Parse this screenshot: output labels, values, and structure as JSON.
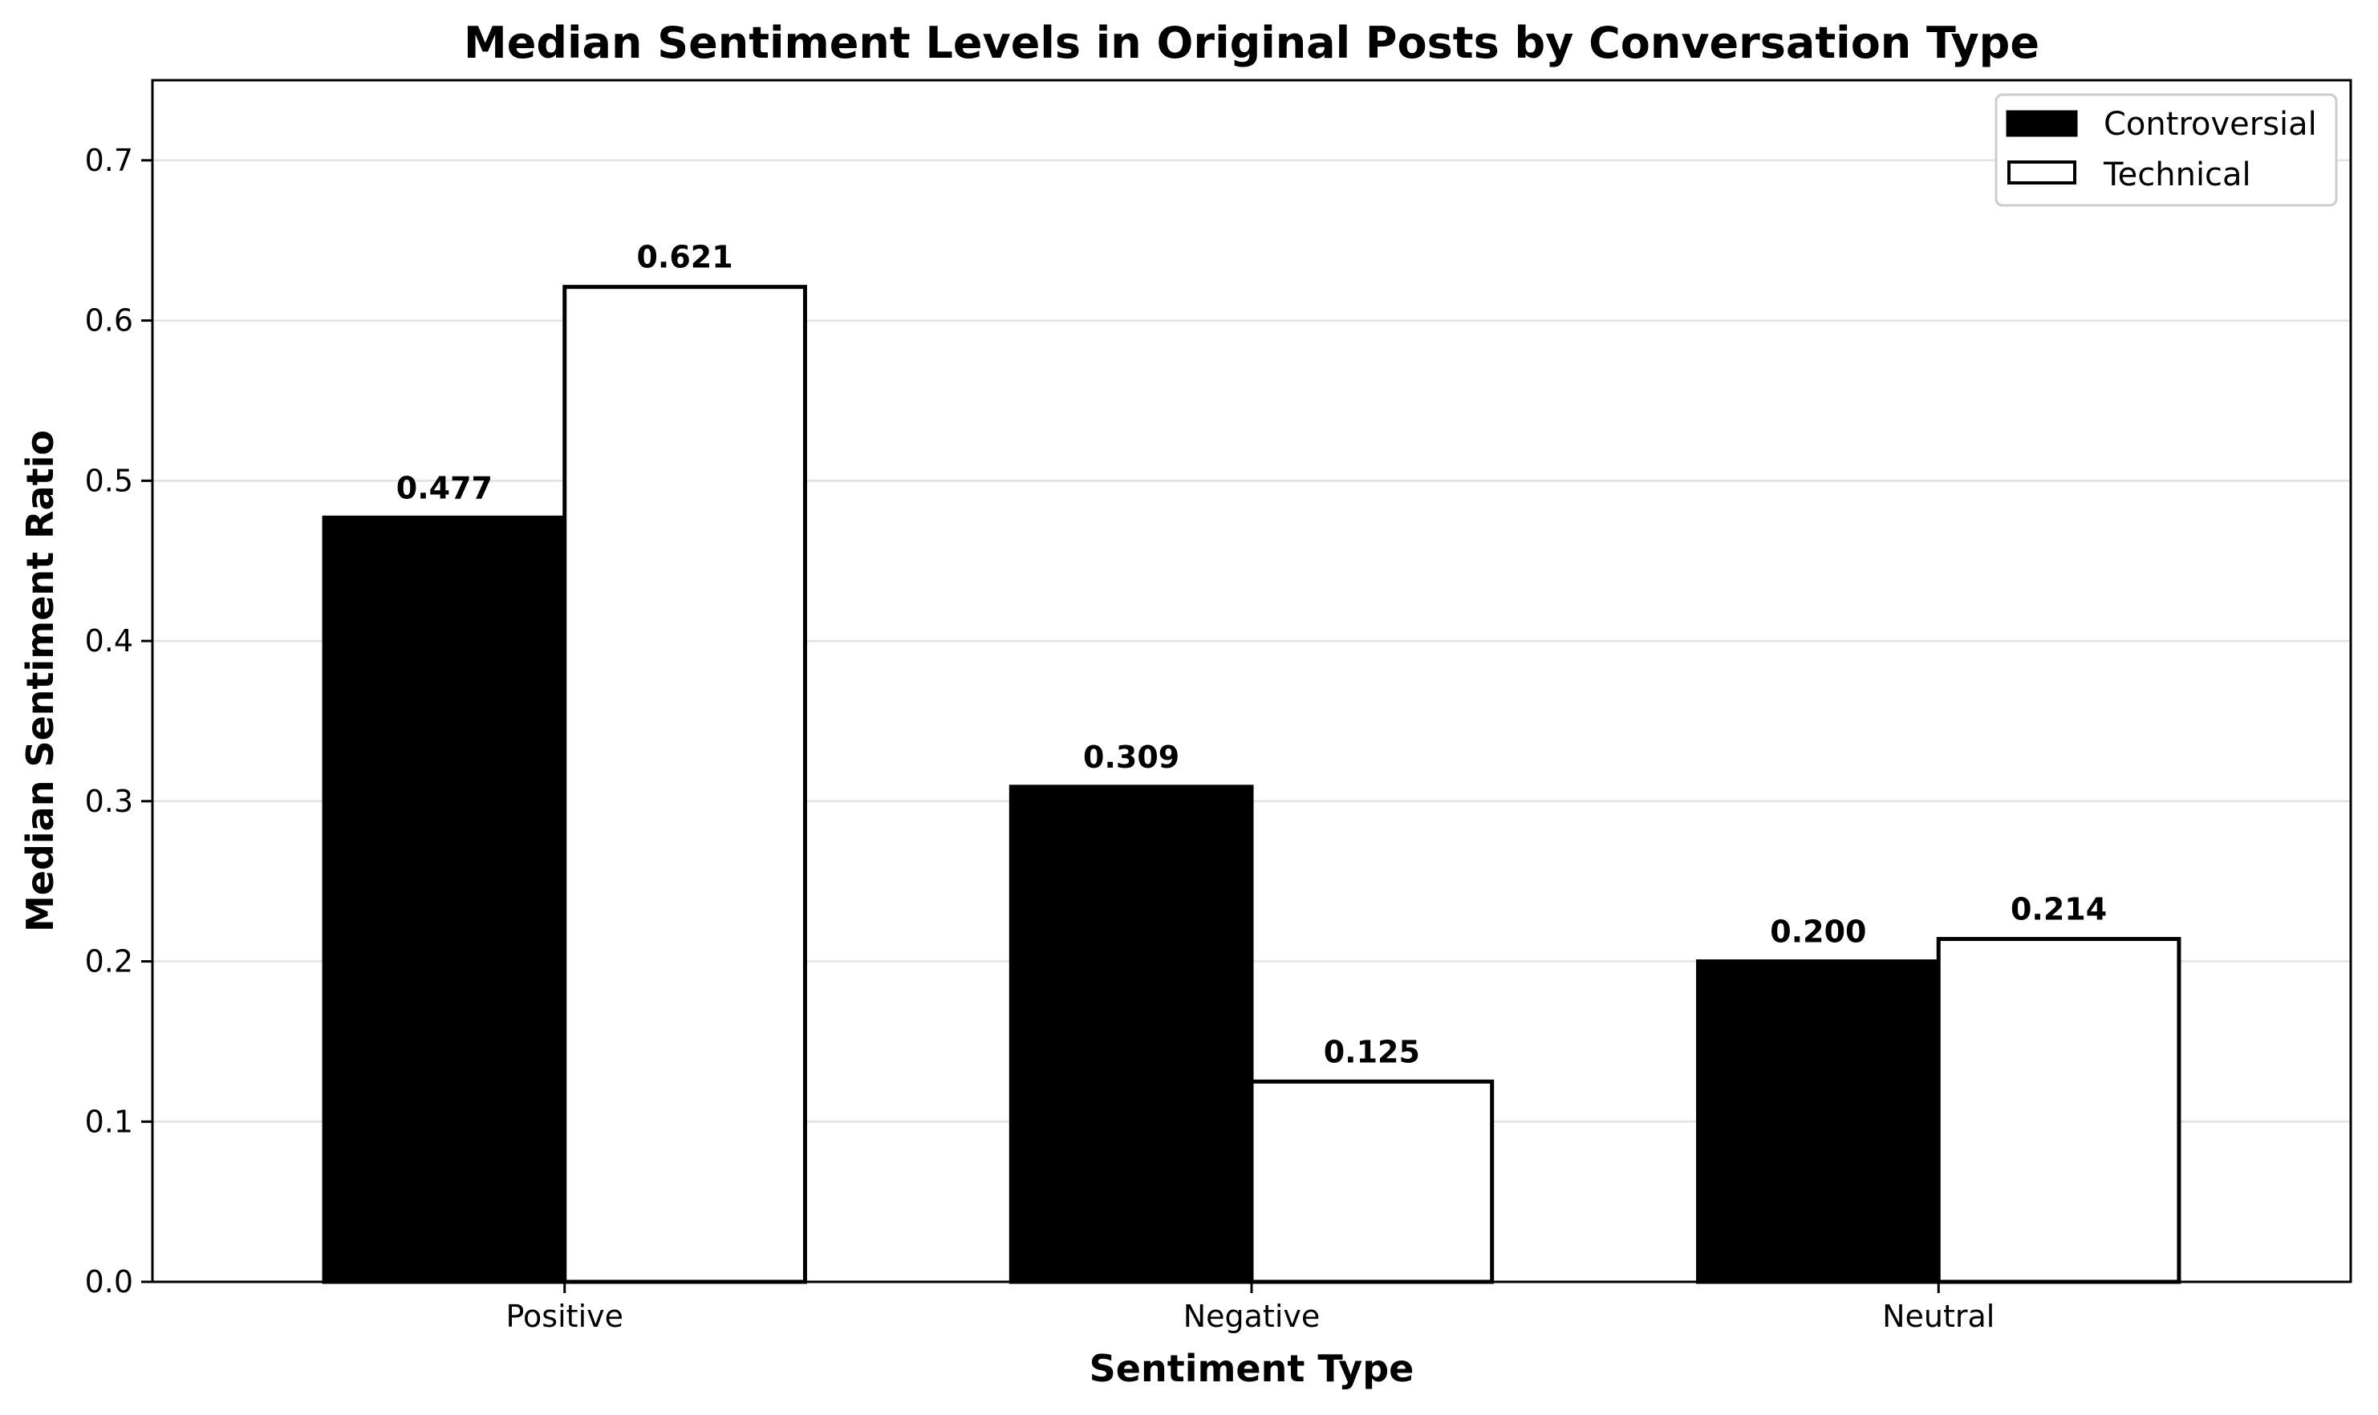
{
  "chart_data": {
    "type": "bar",
    "title": "Median Sentiment Levels in Original Posts by Conversation Type",
    "xlabel": "Sentiment Type",
    "ylabel": "Median Sentiment Ratio",
    "categories": [
      "Positive",
      "Negative",
      "Neutral"
    ],
    "series": [
      {
        "name": "Controversial",
        "values": [
          0.477,
          0.309,
          0.2
        ],
        "labels": [
          "0.477",
          "0.309",
          "0.200"
        ],
        "fill": "#000000",
        "stroke": "#000000"
      },
      {
        "name": "Technical",
        "values": [
          0.621,
          0.125,
          0.214
        ],
        "labels": [
          "0.621",
          "0.125",
          "0.214"
        ],
        "fill": "#ffffff",
        "stroke": "#000000"
      }
    ],
    "ylim": [
      0,
      0.75
    ],
    "yticks": [
      0.0,
      0.1,
      0.2,
      0.3,
      0.4,
      0.5,
      0.6,
      0.7
    ],
    "ytick_labels": [
      "0.0",
      "0.1",
      "0.2",
      "0.3",
      "0.4",
      "0.5",
      "0.6",
      "0.7"
    ],
    "grid": "y",
    "legend_position": "top-right"
  }
}
